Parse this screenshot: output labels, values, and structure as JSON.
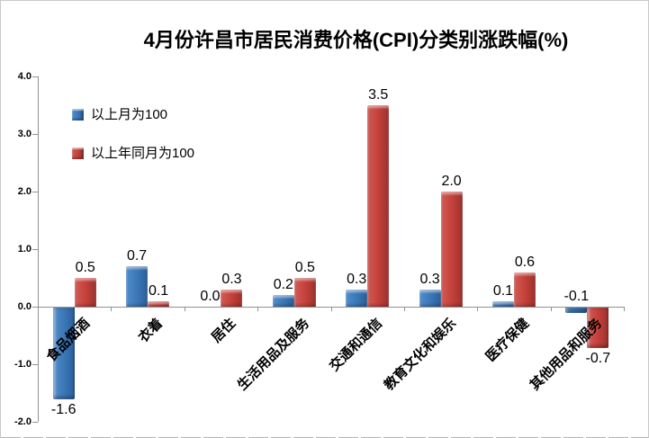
{
  "page": {
    "background": "#ffffff",
    "border_color": "#c9c9c9"
  },
  "chart_data": {
    "type": "bar",
    "title": "4月份许昌市居民消费价格(CPI)分类别涨跌幅(%)",
    "categories": [
      "食品烟酒",
      "衣着",
      "居住",
      "生活用品及服务",
      "交通和通信",
      "教育文化和娱乐",
      "医疗保健",
      "其他用品和服务"
    ],
    "series": [
      {
        "name": "以上月为100",
        "color": "#3e7cbe",
        "values": [
          -1.6,
          0.7,
          0.0,
          0.2,
          0.3,
          0.3,
          0.1,
          -0.1
        ]
      },
      {
        "name": "以上年同月为100",
        "color": "#c5423d",
        "values": [
          0.5,
          0.1,
          0.3,
          0.5,
          3.5,
          2.0,
          0.6,
          -0.7
        ]
      }
    ],
    "data_labels": [
      [
        "-1.6",
        "0.7",
        "0.0",
        "0.2",
        "0.3",
        "0.3",
        "0.1",
        "-0.1"
      ],
      [
        "0.5",
        "0.1",
        "0.3",
        "0.5",
        "3.5",
        "2.0",
        "0.6",
        "-0.7"
      ]
    ],
    "ylim": [
      -2.0,
      4.0
    ],
    "ytick_step": 1.0,
    "ytick_labels": [
      "4.0",
      "3.0",
      "2.0",
      "1.0",
      "0.0",
      "-1.0",
      "-2.0"
    ],
    "legend_position": "top-left-inside",
    "grid": false,
    "axis_color": "#919191"
  }
}
